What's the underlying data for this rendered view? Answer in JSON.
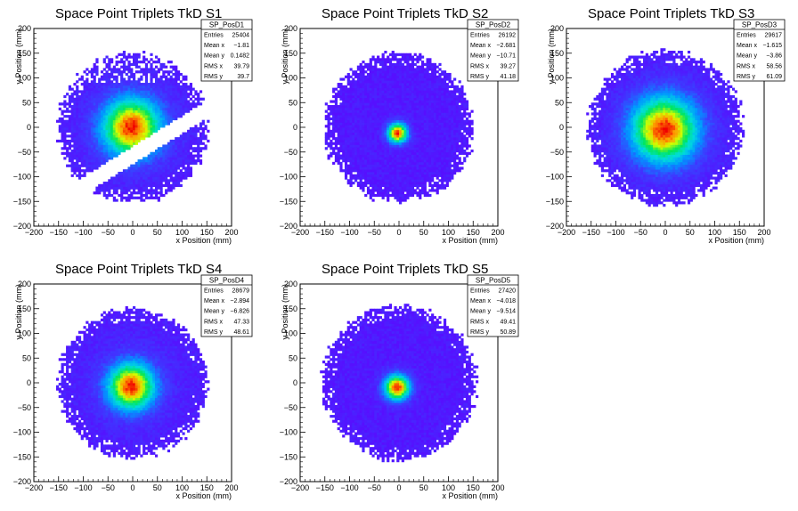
{
  "chart_data": [
    {
      "type": "heatmap",
      "title": "Space Point Triplets TkD S1",
      "xlabel": "x Position (mm)",
      "ylabel": "y Position (mm)",
      "xlim": [
        -200,
        200
      ],
      "ylim": [
        -200,
        200
      ],
      "xticks": [
        "−200",
        "−150",
        "−100",
        "−50",
        "0",
        "50",
        "100",
        "150",
        "200"
      ],
      "yticks": [
        "−200",
        "−150",
        "−100",
        "−50",
        "0",
        "50",
        "100",
        "150",
        "200"
      ],
      "stats": {
        "name": "SP_PosD1",
        "rows": [
          [
            "Entries",
            "25404"
          ],
          [
            "Mean x",
            "−1.81"
          ],
          [
            "Mean y",
            "0.1482"
          ],
          [
            "RMS x",
            "39.79"
          ],
          [
            "RMS y",
            "39.7"
          ]
        ]
      },
      "distribution": {
        "shape": "gap",
        "radius": 150,
        "center": [
          -2,
          0
        ],
        "sigma": 40,
        "gap_band": [
          -75,
          -38
        ]
      }
    },
    {
      "type": "heatmap",
      "title": "Space Point Triplets TkD S2",
      "xlabel": "x Position (mm)",
      "ylabel": "y Position (mm)",
      "xlim": [
        -200,
        200
      ],
      "ylim": [
        -200,
        200
      ],
      "xticks": [
        "−200",
        "−150",
        "−100",
        "−50",
        "0",
        "50",
        "100",
        "150",
        "200"
      ],
      "yticks": [
        "−200",
        "−150",
        "−100",
        "−50",
        "0",
        "50",
        "100",
        "150",
        "200"
      ],
      "stats": {
        "name": "SP_PosD2",
        "rows": [
          [
            "Entries",
            "26192"
          ],
          [
            "Mean x",
            "−2.681"
          ],
          [
            "Mean y",
            "−10.71"
          ],
          [
            "RMS x",
            "39.27"
          ],
          [
            "RMS y",
            "41.18"
          ]
        ]
      },
      "distribution": {
        "shape": "ring",
        "radius": 150,
        "center": [
          -3,
          -11
        ],
        "sigma": 14
      }
    },
    {
      "type": "heatmap",
      "title": "Space Point Triplets TkD S3",
      "xlabel": "x Position (mm)",
      "ylabel": "y Position (mm)",
      "xlim": [
        -200,
        200
      ],
      "ylim": [
        -200,
        200
      ],
      "xticks": [
        "−200",
        "−150",
        "−100",
        "−50",
        "0",
        "50",
        "100",
        "150",
        "200"
      ],
      "yticks": [
        "−200",
        "−150",
        "−100",
        "−50",
        "0",
        "50",
        "100",
        "150",
        "200"
      ],
      "stats": {
        "name": "SP_PosD3",
        "rows": [
          [
            "Entries",
            "29617"
          ],
          [
            "Mean x",
            "−1.615"
          ],
          [
            "Mean y",
            "−3.86"
          ],
          [
            "RMS x",
            "58.56"
          ],
          [
            "RMS y",
            "61.09"
          ]
        ]
      },
      "distribution": {
        "shape": "disc",
        "radius": 155,
        "center": [
          -2,
          -4
        ],
        "sigma": 45
      }
    },
    {
      "type": "heatmap",
      "title": "Space Point Triplets TkD S4",
      "xlabel": "x Position (mm)",
      "ylabel": "y Position (mm)",
      "xlim": [
        -200,
        200
      ],
      "ylim": [
        -200,
        200
      ],
      "xticks": [
        "−200",
        "−150",
        "−100",
        "−50",
        "0",
        "50",
        "100",
        "150",
        "200"
      ],
      "yticks": [
        "−200",
        "−150",
        "−100",
        "−50",
        "0",
        "50",
        "100",
        "150",
        "200"
      ],
      "stats": {
        "name": "SP_PosD4",
        "rows": [
          [
            "Entries",
            "28679"
          ],
          [
            "Mean x",
            "−2.894"
          ],
          [
            "Mean y",
            "−6.826"
          ],
          [
            "RMS x",
            "47.33"
          ],
          [
            "RMS y",
            "48.61"
          ]
        ]
      },
      "distribution": {
        "shape": "disc",
        "radius": 150,
        "center": [
          -3,
          -7
        ],
        "sigma": 32
      }
    },
    {
      "type": "heatmap",
      "title": "Space Point Triplets TkD S5",
      "xlabel": "x Position (mm)",
      "ylabel": "y Position (mm)",
      "xlim": [
        -200,
        200
      ],
      "ylim": [
        -200,
        200
      ],
      "xticks": [
        "−200",
        "−150",
        "−100",
        "−50",
        "0",
        "50",
        "100",
        "150",
        "200"
      ],
      "yticks": [
        "−200",
        "−150",
        "−100",
        "−50",
        "0",
        "50",
        "100",
        "150",
        "200"
      ],
      "stats": {
        "name": "SP_PosD5",
        "rows": [
          [
            "Entries",
            "27420"
          ],
          [
            "Mean x",
            "−4.018"
          ],
          [
            "Mean y",
            "−9.514"
          ],
          [
            "RMS x",
            "49.41"
          ],
          [
            "RMS y",
            "50.89"
          ]
        ]
      },
      "distribution": {
        "shape": "ring",
        "radius": 155,
        "center": [
          -4,
          -9
        ],
        "sigma": 18
      }
    }
  ]
}
